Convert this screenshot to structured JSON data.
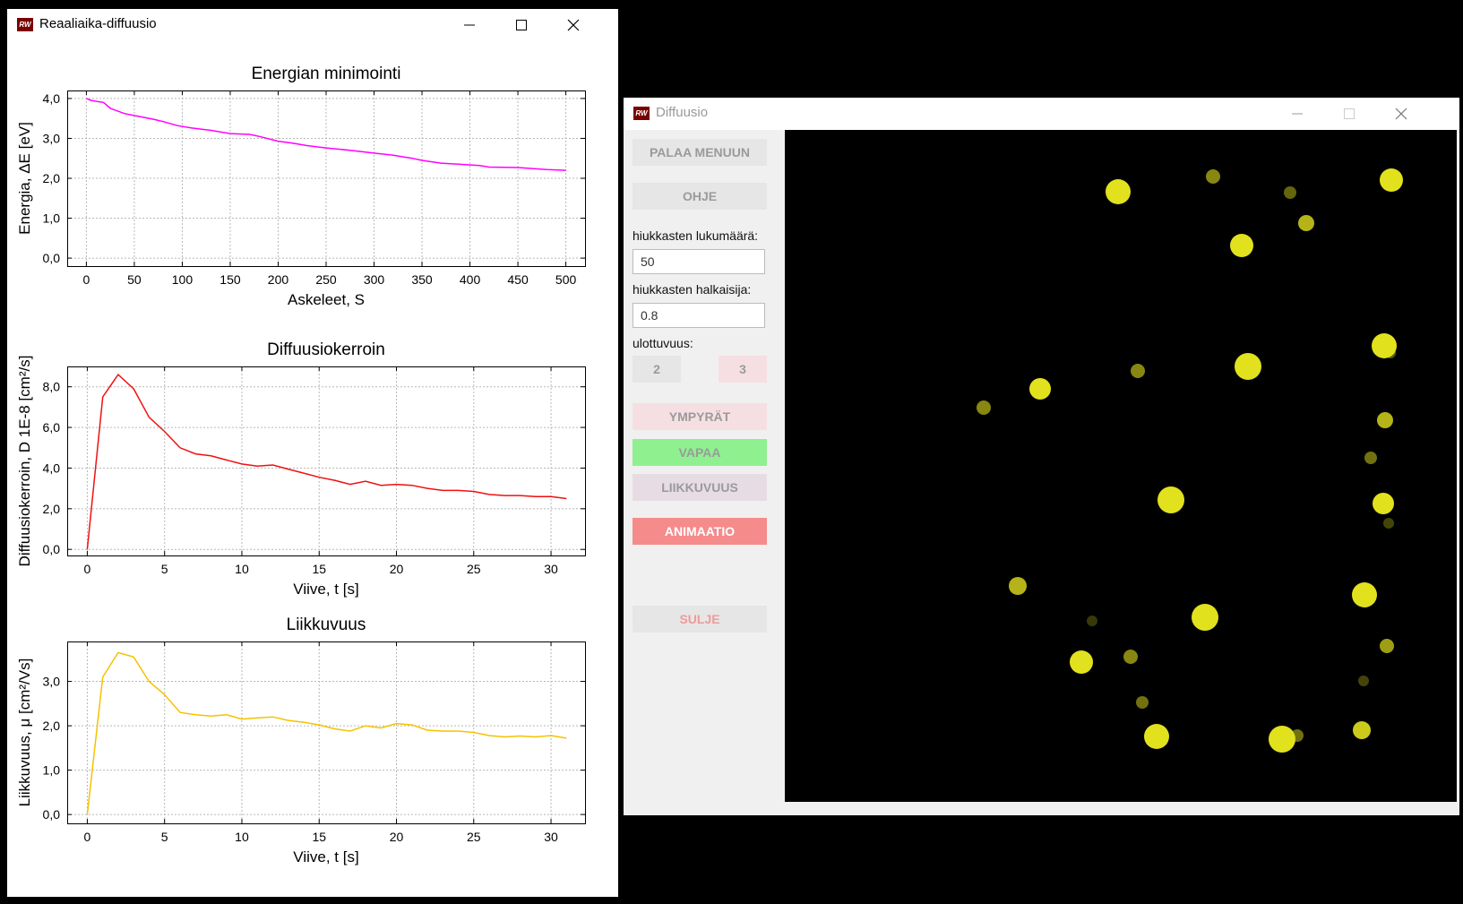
{
  "window_charts": {
    "title": "Reaaliaika-diffuusio",
    "icon": "rw-logo"
  },
  "window_sim": {
    "title": "Diffuusio",
    "icon": "rw-logo",
    "buttons": {
      "back": "PALAA MENUUN",
      "help": "OHJE",
      "dim2": "2",
      "dim3": "3",
      "circles": "YMPYRÄT",
      "free": "VAPAA",
      "mobility": "LIIKKUVUUS",
      "animation": "ANIMAATIO",
      "close": "SULJE"
    },
    "labels": {
      "count": "hiukkasten lukumäärä:",
      "diameter": "hiukkasten halkaisija:",
      "dimension": "ulottuvuus:"
    },
    "inputs": {
      "count": "50",
      "diameter": "0.8"
    },
    "colors": {
      "btn_default": "#e6e6e6",
      "btn_pink": "#f6dfe3",
      "btn_green": "#8ff08f",
      "btn_lilac": "#e7dce4",
      "btn_red": "#f58b8b",
      "particle": "#e1e11e"
    },
    "particles": [
      {
        "x": 372,
        "y": 69,
        "r": 14,
        "o": 1
      },
      {
        "x": 478,
        "y": 52,
        "r": 8,
        "o": 0.6
      },
      {
        "x": 677,
        "y": 56,
        "r": 13,
        "o": 1
      },
      {
        "x": 564,
        "y": 70,
        "r": 7,
        "o": 0.45
      },
      {
        "x": 582,
        "y": 104,
        "r": 9,
        "o": 0.8
      },
      {
        "x": 510,
        "y": 129,
        "r": 13,
        "o": 1
      },
      {
        "x": 669,
        "y": 241,
        "r": 14,
        "o": 1
      },
      {
        "x": 517,
        "y": 264,
        "r": 15,
        "o": 1
      },
      {
        "x": 394,
        "y": 269,
        "r": 8,
        "o": 0.6
      },
      {
        "x": 285,
        "y": 289,
        "r": 12,
        "o": 1
      },
      {
        "x": 222,
        "y": 310,
        "r": 8,
        "o": 0.6
      },
      {
        "x": 670,
        "y": 324,
        "r": 9,
        "o": 0.8
      },
      {
        "x": 654,
        "y": 366,
        "r": 7,
        "o": 0.5
      },
      {
        "x": 431,
        "y": 413,
        "r": 15,
        "o": 1
      },
      {
        "x": 668,
        "y": 417,
        "r": 12,
        "o": 1
      },
      {
        "x": 674,
        "y": 439,
        "r": 6,
        "o": 0.3
      },
      {
        "x": 260,
        "y": 509,
        "r": 10,
        "o": 0.8
      },
      {
        "x": 647,
        "y": 519,
        "r": 14,
        "o": 1
      },
      {
        "x": 469,
        "y": 544,
        "r": 15,
        "o": 1
      },
      {
        "x": 343,
        "y": 548,
        "r": 6,
        "o": 0.25
      },
      {
        "x": 331,
        "y": 594,
        "r": 13,
        "o": 1
      },
      {
        "x": 386,
        "y": 588,
        "r": 8,
        "o": 0.6
      },
      {
        "x": 672,
        "y": 576,
        "r": 8,
        "o": 0.7
      },
      {
        "x": 646,
        "y": 615,
        "r": 6,
        "o": 0.3
      },
      {
        "x": 399,
        "y": 639,
        "r": 7,
        "o": 0.5
      },
      {
        "x": 415,
        "y": 677,
        "r": 14,
        "o": 1
      },
      {
        "x": 555,
        "y": 680,
        "r": 15,
        "o": 1
      },
      {
        "x": 572,
        "y": 676,
        "r": 7,
        "o": 0.5
      },
      {
        "x": 644,
        "y": 670,
        "r": 10,
        "o": 0.9
      },
      {
        "x": 374,
        "y": 71,
        "r": 6,
        "o": 0.5
      },
      {
        "x": 676,
        "y": 249,
        "r": 6,
        "o": 0.4
      }
    ]
  },
  "chart_data": [
    {
      "type": "line",
      "title": "Energian minimointi",
      "xlabel": "Askeleet, S",
      "ylabel": "Energia, ΔE [eV]",
      "xlim": [
        -20,
        520
      ],
      "ylim": [
        -0.2,
        4.2
      ],
      "xticks": [
        0,
        50,
        100,
        150,
        200,
        250,
        300,
        350,
        400,
        450,
        500
      ],
      "xtick_labels": [
        "0",
        "50",
        "100",
        "150",
        "200",
        "250",
        "300",
        "350",
        "400",
        "450",
        "500"
      ],
      "yticks": [
        0,
        1,
        2,
        3,
        4
      ],
      "ytick_labels": [
        "0,0",
        "1,0",
        "2,0",
        "3,0",
        "4,0"
      ],
      "grid": true,
      "series": [
        {
          "color": "#ff00ff",
          "x": [
            0,
            5,
            18,
            25,
            40,
            55,
            70,
            80,
            95,
            110,
            130,
            150,
            170,
            180,
            200,
            215,
            230,
            250,
            275,
            300,
            320,
            340,
            350,
            370,
            390,
            410,
            420,
            450,
            480,
            500
          ],
          "y": [
            4.0,
            3.95,
            3.9,
            3.75,
            3.62,
            3.55,
            3.48,
            3.42,
            3.32,
            3.26,
            3.2,
            3.12,
            3.1,
            3.05,
            2.93,
            2.88,
            2.82,
            2.76,
            2.7,
            2.63,
            2.58,
            2.5,
            2.45,
            2.38,
            2.35,
            2.32,
            2.28,
            2.27,
            2.22,
            2.2
          ]
        }
      ]
    },
    {
      "type": "line",
      "title": "Diffuusiokerroin",
      "xlabel": "Viive, t [s]",
      "ylabel": "Diffuusiokerroin, D 1E-8 [cm²/s]",
      "xlim": [
        -1.3,
        32.2
      ],
      "ylim": [
        -0.3,
        9.0
      ],
      "xticks": [
        0,
        5,
        10,
        15,
        20,
        25,
        30
      ],
      "xtick_labels": [
        "0",
        "5",
        "10",
        "15",
        "20",
        "25",
        "30"
      ],
      "yticks": [
        0,
        2,
        4,
        6,
        8
      ],
      "ytick_labels": [
        "0,0",
        "2,0",
        "4,0",
        "6,0",
        "8,0"
      ],
      "grid": true,
      "series": [
        {
          "color": "#ee1111",
          "x": [
            0,
            1,
            2,
            3,
            4,
            5,
            6,
            7,
            8,
            9,
            10,
            11,
            12,
            13,
            14,
            15,
            16,
            17,
            18,
            19,
            20,
            21,
            22,
            23,
            24,
            25,
            26,
            27,
            28,
            29,
            30,
            31
          ],
          "y": [
            0.0,
            7.5,
            8.6,
            7.9,
            6.5,
            5.8,
            5.0,
            4.7,
            4.6,
            4.4,
            4.2,
            4.1,
            4.15,
            3.95,
            3.75,
            3.55,
            3.4,
            3.2,
            3.35,
            3.15,
            3.2,
            3.15,
            3.0,
            2.9,
            2.9,
            2.85,
            2.7,
            2.65,
            2.65,
            2.6,
            2.6,
            2.5
          ]
        }
      ]
    },
    {
      "type": "line",
      "title": "Liikkuvuus",
      "xlabel": "Viive, t [s]",
      "ylabel": "Liikkuvuus, μ [cm²/Vs]",
      "xlim": [
        -1.3,
        32.2
      ],
      "ylim": [
        -0.2,
        3.9
      ],
      "xticks": [
        0,
        5,
        10,
        15,
        20,
        25,
        30
      ],
      "xtick_labels": [
        "0",
        "5",
        "10",
        "15",
        "20",
        "25",
        "30"
      ],
      "yticks": [
        0,
        1,
        2,
        3
      ],
      "ytick_labels": [
        "0,0",
        "1,0",
        "2,0",
        "3,0"
      ],
      "grid": true,
      "series": [
        {
          "color": "#f5c200",
          "x": [
            0,
            1,
            2,
            3,
            4,
            5,
            6,
            7,
            8,
            9,
            10,
            11,
            12,
            13,
            14,
            15,
            16,
            17,
            18,
            19,
            20,
            21,
            22,
            23,
            24,
            25,
            26,
            27,
            28,
            29,
            30,
            31
          ],
          "y": [
            0.0,
            3.1,
            3.65,
            3.55,
            3.0,
            2.7,
            2.3,
            2.25,
            2.22,
            2.25,
            2.15,
            2.18,
            2.2,
            2.12,
            2.08,
            2.02,
            1.93,
            1.88,
            2.0,
            1.95,
            2.05,
            2.02,
            1.9,
            1.88,
            1.88,
            1.85,
            1.78,
            1.75,
            1.77,
            1.75,
            1.78,
            1.72
          ]
        }
      ]
    }
  ]
}
